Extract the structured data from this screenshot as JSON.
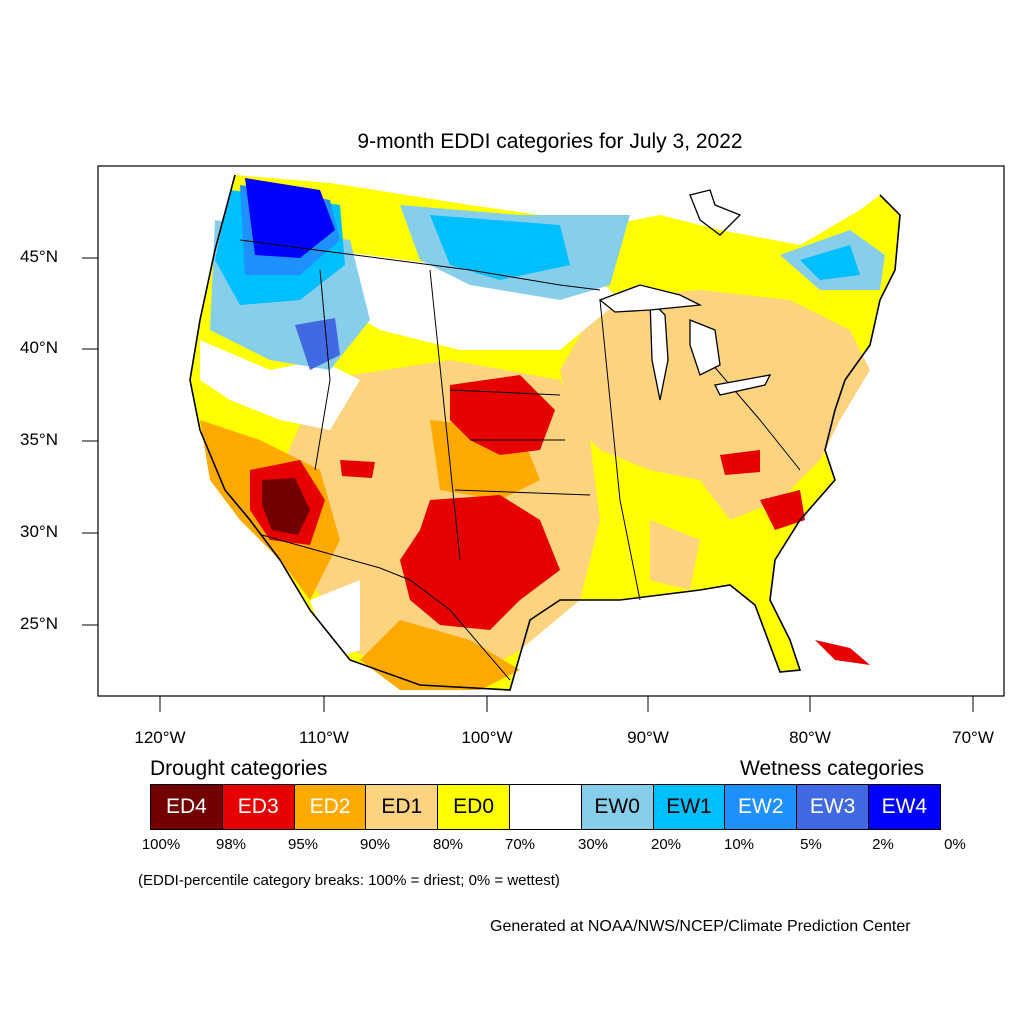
{
  "title": "9-month EDDI categories for July 3, 2022",
  "lat_ticks": [
    "45°N",
    "40°N",
    "35°N",
    "30°N",
    "25°N"
  ],
  "lon_ticks": [
    "120°W",
    "110°W",
    "100°W",
    "90°W",
    "80°W",
    "70°W"
  ],
  "legend": {
    "drought_heading": "Drought categories",
    "wetness_heading": "Wetness categories",
    "categories": [
      {
        "label": "ED4",
        "color": "#730000",
        "text_color": "#ffffff"
      },
      {
        "label": "ED3",
        "color": "#e60000",
        "text_color": "#ffffff"
      },
      {
        "label": "ED2",
        "color": "#ffaa00",
        "text_color": "#ffffff"
      },
      {
        "label": "ED1",
        "color": "#fcd37f",
        "text_color": "#000000"
      },
      {
        "label": "ED0",
        "color": "#ffff00",
        "text_color": "#000000"
      },
      {
        "label": "",
        "color": "#ffffff",
        "text_color": "#000000"
      },
      {
        "label": "EW0",
        "color": "#87ceeb",
        "text_color": "#000000"
      },
      {
        "label": "EW1",
        "color": "#00bfff",
        "text_color": "#000000"
      },
      {
        "label": "EW2",
        "color": "#1e90ff",
        "text_color": "#ffffff"
      },
      {
        "label": "EW3",
        "color": "#4169e1",
        "text_color": "#ffffff"
      },
      {
        "label": "EW4",
        "color": "#0000ff",
        "text_color": "#ffffff"
      }
    ],
    "percent_breaks": [
      "100%",
      "98%",
      "95%",
      "90%",
      "80%",
      "70%",
      "30%",
      "20%",
      "10%",
      "5%",
      "2%",
      "0%"
    ]
  },
  "footnote": "(EDDI-percentile category breaks: 100% = driest; 0% = wettest)",
  "credit": "Generated at NOAA/NWS/NCEP/Climate Prediction Center"
}
